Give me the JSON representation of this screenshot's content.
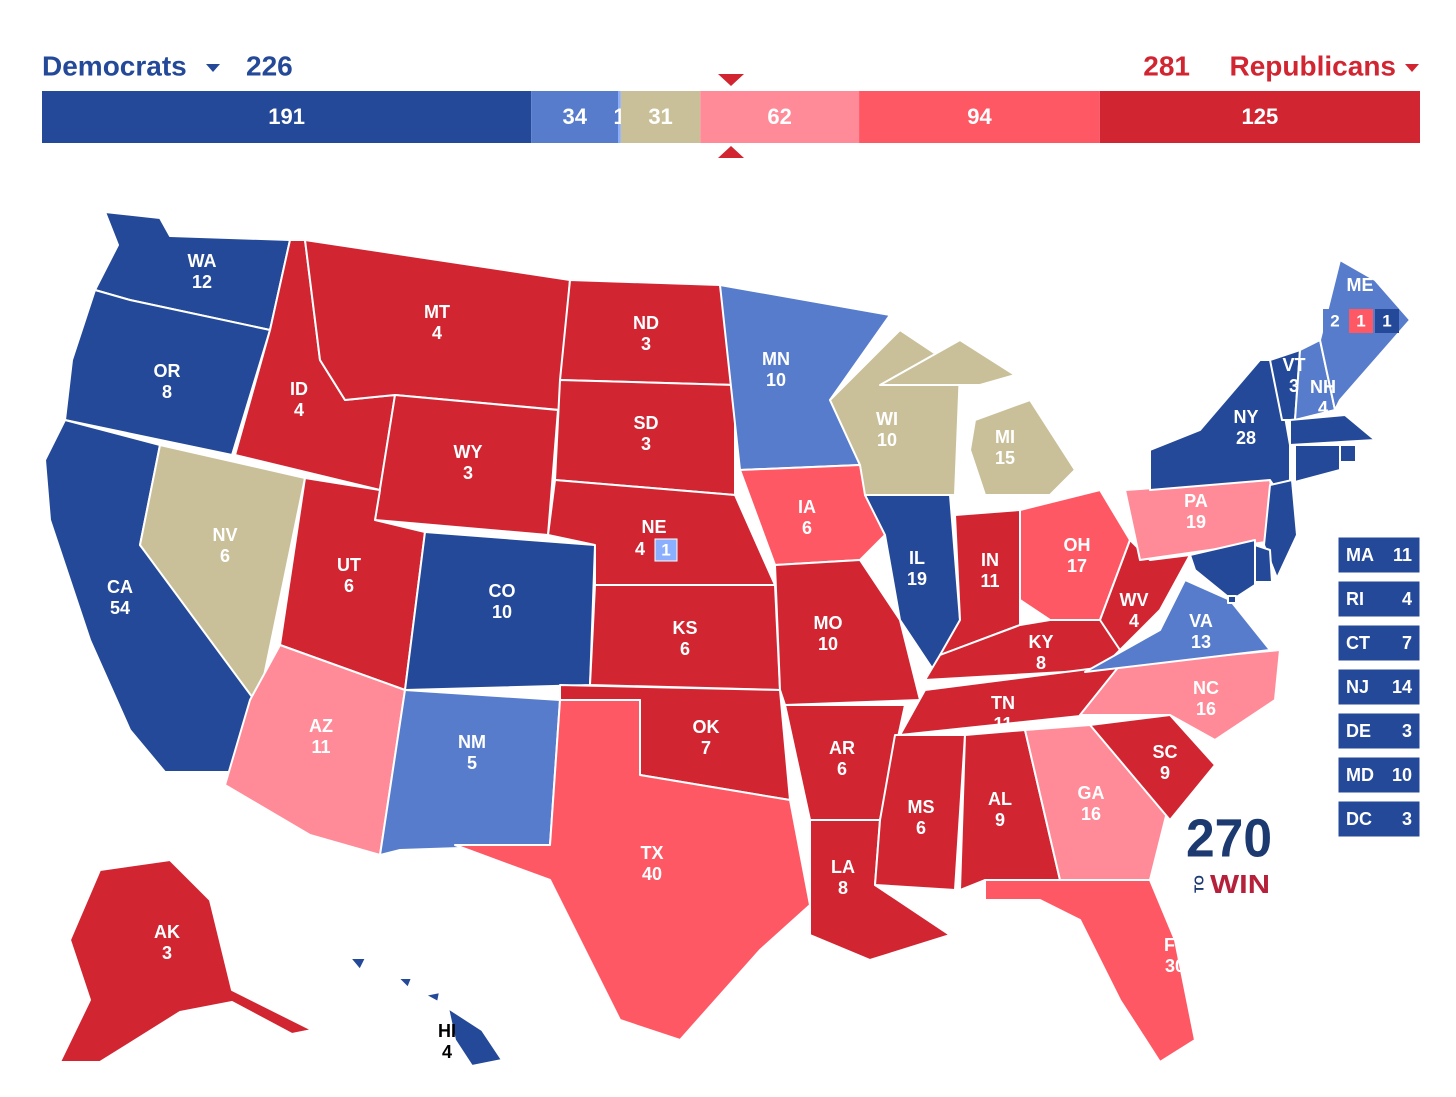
{
  "header": {
    "left_label": "Democrats",
    "left_total": "226",
    "right_total": "281",
    "right_label": "Republicans"
  },
  "summary_bar": {
    "segments": [
      {
        "value": 191,
        "color": "#244999"
      },
      {
        "value": 34,
        "color": "#577ccc"
      },
      {
        "value": 1,
        "color": "#8aafff"
      },
      {
        "value": 31,
        "color": "#c9c09a"
      },
      {
        "value": 62,
        "color": "#ff8b98"
      },
      {
        "value": 94,
        "color": "#ff5865"
      },
      {
        "value": 125,
        "color": "#d22532"
      }
    ]
  },
  "states": [
    {
      "abbr": "WA",
      "votes": "12",
      "color": "#244999"
    },
    {
      "abbr": "OR",
      "votes": "8",
      "color": "#244999"
    },
    {
      "abbr": "CA",
      "votes": "54",
      "color": "#244999"
    },
    {
      "abbr": "NV",
      "votes": "6",
      "color": "#c9c09a"
    },
    {
      "abbr": "ID",
      "votes": "4",
      "color": "#d22532"
    },
    {
      "abbr": "MT",
      "votes": "4",
      "color": "#d22532"
    },
    {
      "abbr": "WY",
      "votes": "3",
      "color": "#d22532"
    },
    {
      "abbr": "UT",
      "votes": "6",
      "color": "#d22532"
    },
    {
      "abbr": "CO",
      "votes": "10",
      "color": "#244999"
    },
    {
      "abbr": "AZ",
      "votes": "11",
      "color": "#ff8b98"
    },
    {
      "abbr": "NM",
      "votes": "5",
      "color": "#577ccc"
    },
    {
      "abbr": "ND",
      "votes": "3",
      "color": "#d22532"
    },
    {
      "abbr": "SD",
      "votes": "3",
      "color": "#d22532"
    },
    {
      "abbr": "NE",
      "votes": "4",
      "color": "#d22532",
      "district": {
        "votes": "1",
        "color": "#8aafff"
      }
    },
    {
      "abbr": "KS",
      "votes": "6",
      "color": "#d22532"
    },
    {
      "abbr": "OK",
      "votes": "7",
      "color": "#d22532"
    },
    {
      "abbr": "TX",
      "votes": "40",
      "color": "#ff5865"
    },
    {
      "abbr": "MN",
      "votes": "10",
      "color": "#577ccc"
    },
    {
      "abbr": "IA",
      "votes": "6",
      "color": "#ff5865"
    },
    {
      "abbr": "MO",
      "votes": "10",
      "color": "#d22532"
    },
    {
      "abbr": "AR",
      "votes": "6",
      "color": "#d22532"
    },
    {
      "abbr": "LA",
      "votes": "8",
      "color": "#d22532"
    },
    {
      "abbr": "WI",
      "votes": "10",
      "color": "#c9c09a"
    },
    {
      "abbr": "IL",
      "votes": "19",
      "color": "#244999"
    },
    {
      "abbr": "MI",
      "votes": "15",
      "color": "#c9c09a"
    },
    {
      "abbr": "IN",
      "votes": "11",
      "color": "#d22532"
    },
    {
      "abbr": "OH",
      "votes": "17",
      "color": "#ff5865"
    },
    {
      "abbr": "KY",
      "votes": "8",
      "color": "#d22532"
    },
    {
      "abbr": "TN",
      "votes": "11",
      "color": "#d22532"
    },
    {
      "abbr": "MS",
      "votes": "6",
      "color": "#d22532"
    },
    {
      "abbr": "AL",
      "votes": "9",
      "color": "#d22532"
    },
    {
      "abbr": "GA",
      "votes": "16",
      "color": "#ff8b98"
    },
    {
      "abbr": "FL",
      "votes": "30",
      "color": "#ff5865"
    },
    {
      "abbr": "SC",
      "votes": "9",
      "color": "#d22532"
    },
    {
      "abbr": "NC",
      "votes": "16",
      "color": "#ff8b98"
    },
    {
      "abbr": "VA",
      "votes": "13",
      "color": "#577ccc"
    },
    {
      "abbr": "WV",
      "votes": "4",
      "color": "#d22532"
    },
    {
      "abbr": "PA",
      "votes": "19",
      "color": "#ff8b98"
    },
    {
      "abbr": "NY",
      "votes": "28",
      "color": "#244999"
    },
    {
      "abbr": "VT",
      "votes": "3",
      "color": "#244999"
    },
    {
      "abbr": "NH",
      "votes": "4",
      "color": "#577ccc"
    },
    {
      "abbr": "ME",
      "color": "#577ccc",
      "districts": [
        {
          "votes": "2",
          "color": "#577ccc"
        },
        {
          "votes": "1",
          "color": "#ff5865"
        },
        {
          "votes": "1",
          "color": "#244999"
        }
      ]
    },
    {
      "abbr": "MA",
      "votes": "11",
      "color": "#244999"
    },
    {
      "abbr": "RI",
      "votes": "4",
      "color": "#244999"
    },
    {
      "abbr": "CT",
      "votes": "7",
      "color": "#244999"
    },
    {
      "abbr": "NJ",
      "votes": "14",
      "color": "#244999"
    },
    {
      "abbr": "DE",
      "votes": "3",
      "color": "#244999"
    },
    {
      "abbr": "MD",
      "votes": "10",
      "color": "#244999"
    },
    {
      "abbr": "DC",
      "votes": "3",
      "color": "#244999"
    },
    {
      "abbr": "AK",
      "votes": "3",
      "color": "#d22532"
    },
    {
      "abbr": "HI",
      "votes": "4",
      "color": "#244999"
    }
  ],
  "logo": {
    "number": "270",
    "to": "TO",
    "win": "WIN"
  }
}
